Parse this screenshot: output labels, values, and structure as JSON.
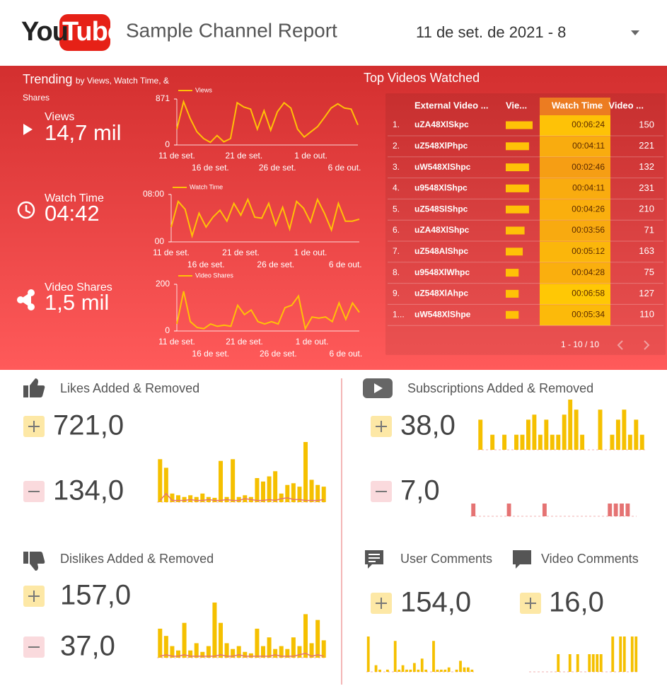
{
  "header": {
    "logo": [
      "You",
      "Tube"
    ],
    "title": "Sample Channel Report",
    "date_range": "11 de set. de 2021 - 8"
  },
  "trending": {
    "title": "Trending",
    "subtitle": "by Views, Watch Time, & Shares",
    "metrics": [
      {
        "label": "Views",
        "value": "14,7 mil"
      },
      {
        "label": "Watch Time",
        "value": "04:42"
      },
      {
        "label": "Video Shares",
        "value": "1,5 mil"
      }
    ]
  },
  "top_videos": {
    "title": "Top Videos Watched",
    "columns": [
      "External Video ...",
      "Vie...",
      "Watch Time",
      "Video ..."
    ],
    "rows": [
      [
        "1.",
        "uZA48XlSkpc",
        1500,
        "00:06:24",
        150
      ],
      [
        "2.",
        "uZ548XlPhpc",
        1300,
        "00:04:11",
        221
      ],
      [
        "3.",
        "uW548XlShpc",
        1300,
        "00:02:46",
        132
      ],
      [
        "4.",
        "u9548XlShpc",
        1300,
        "00:04:11",
        231
      ],
      [
        "5.",
        "uZ548SlShpc",
        1300,
        "00:04:26",
        210
      ],
      [
        "6.",
        "uZA48XlShpc",
        1050,
        "00:03:56",
        71
      ],
      [
        "7.",
        "uZ548AlShpc",
        950,
        "00:05:12",
        163
      ],
      [
        "8.",
        "u9548XlWhpc",
        720,
        "00:04:28",
        75
      ],
      [
        "9.",
        "uZ548XlAhpc",
        720,
        "00:06:58",
        127
      ],
      [
        "1...",
        "uW548XlShpe",
        720,
        "00:05:34",
        110
      ]
    ],
    "pagination": "1 - 10 / 10"
  },
  "chart_data": [
    {
      "type": "line",
      "categories": [
        "11 de set.",
        null,
        null,
        null,
        null,
        "16 de set.",
        null,
        null,
        null,
        null,
        "21 de set.",
        null,
        null,
        null,
        null,
        "26 de set.",
        null,
        null,
        null,
        null,
        "1 de out.",
        null,
        null,
        null,
        null,
        "6 de out.",
        null,
        null
      ],
      "series": [
        {
          "name": "Views",
          "color": "#ffc107",
          "values": [
            300,
            820,
            500,
            250,
            120,
            50,
            180,
            60,
            120,
            800,
            720,
            680,
            300,
            650,
            280,
            630,
            800,
            700,
            300,
            150,
            250,
            350,
            520,
            700,
            780,
            700,
            680,
            380
          ]
        }
      ],
      "ylim": [
        0,
        871
      ],
      "yticks": [
        0,
        871
      ]
    },
    {
      "type": "line",
      "categories": [
        "11 de set.",
        null,
        null,
        null,
        null,
        "16 de set.",
        null,
        null,
        null,
        null,
        "21 de set.",
        null,
        null,
        null,
        null,
        "26 de set.",
        null,
        null,
        null,
        null,
        "1 de out.",
        null,
        null,
        null,
        null,
        "6 de out.",
        null,
        null
      ],
      "series": [
        {
          "name": "Watch Time",
          "color": "#ffc107",
          "values": [
            150,
            410,
            330,
            60,
            290,
            150,
            250,
            320,
            210,
            390,
            270,
            430,
            250,
            240,
            390,
            170,
            350,
            130,
            410,
            340,
            200,
            430,
            290,
            120,
            390,
            210,
            210,
            230
          ]
        }
      ],
      "ylim": [
        0,
        480
      ],
      "yticks": [
        {
          "value": 0,
          "label": "00"
        },
        {
          "value": 480,
          "label": "08:00"
        }
      ]
    },
    {
      "type": "line",
      "categories": [
        "11 de set.",
        null,
        null,
        null,
        null,
        "16 de set.",
        null,
        null,
        null,
        null,
        "21 de set.",
        null,
        null,
        null,
        null,
        "26 de set.",
        null,
        null,
        null,
        null,
        "1 de out.",
        null,
        null,
        null,
        null,
        "6 de out.",
        null,
        null
      ],
      "series": [
        {
          "name": "Video Shares",
          "color": "#ffc107",
          "values": [
            30,
            170,
            40,
            15,
            10,
            30,
            20,
            25,
            20,
            110,
            70,
            90,
            40,
            30,
            40,
            30,
            100,
            110,
            150,
            10,
            60,
            55,
            60,
            40,
            120,
            50,
            120,
            80
          ]
        }
      ],
      "ylim": [
        0,
        200
      ],
      "yticks": [
        0,
        200
      ]
    },
    {
      "type": "combo",
      "title": "Likes Added & Removed",
      "totals": [
        "721,0",
        "134,0"
      ],
      "series": [
        {
          "kind": "bar",
          "color": "#f5c000",
          "values": [
            50,
            40,
            10,
            8,
            6,
            8,
            6,
            10,
            6,
            5,
            48,
            6,
            50,
            6,
            8,
            6,
            28,
            24,
            30,
            36,
            10,
            20,
            22,
            18,
            70,
            26,
            20,
            18
          ]
        },
        {
          "kind": "line",
          "color": "#e57373",
          "values": [
            2,
            10,
            2,
            2,
            2,
            3,
            2,
            2,
            3,
            2,
            2,
            3,
            2,
            2,
            4,
            3,
            2,
            2,
            3,
            2,
            4,
            5,
            3,
            3,
            2,
            2,
            2,
            3
          ]
        }
      ]
    },
    {
      "type": "combo",
      "title": "Dislikes Added & Removed",
      "totals": [
        "157,0",
        "37,0"
      ],
      "series": [
        {
          "kind": "bar",
          "color": "#f5c000",
          "values": [
            20,
            15,
            8,
            5,
            24,
            5,
            10,
            4,
            8,
            38,
            24,
            10,
            6,
            8,
            4,
            3,
            20,
            8,
            14,
            6,
            8,
            6,
            14,
            8,
            30,
            10,
            26,
            12
          ]
        },
        {
          "kind": "line",
          "color": "#e57373",
          "values": [
            1,
            2,
            1,
            1,
            2,
            1,
            1,
            1,
            1,
            1,
            2,
            1,
            1,
            2,
            1,
            1,
            1,
            1,
            1,
            2,
            1,
            1,
            1,
            2,
            3,
            1,
            2,
            1
          ]
        }
      ]
    },
    {
      "type": "bar",
      "title": "Subscriptions Added & Removed",
      "totals": [
        "38,0"
      ],
      "series": [
        {
          "kind": "bar",
          "color": "#f5c000",
          "values": [
            6,
            0,
            3,
            0,
            3,
            0,
            3,
            3,
            6,
            7,
            3,
            6,
            3,
            3,
            7,
            10,
            8,
            3,
            0,
            0,
            8,
            0,
            3,
            6,
            8,
            3,
            6,
            3
          ]
        }
      ]
    },
    {
      "type": "bar",
      "totals": [
        "7,0"
      ],
      "series": [
        {
          "kind": "bar",
          "color": "#e57373",
          "values": [
            1,
            0,
            0,
            0,
            0,
            0,
            1,
            0,
            0,
            0,
            0,
            0,
            1,
            0,
            0,
            0,
            0,
            0,
            0,
            0,
            0,
            0,
            0,
            1,
            1,
            1,
            1,
            0
          ]
        }
      ]
    },
    {
      "type": "bar",
      "title": "User Comments",
      "totals": [
        "154,0"
      ],
      "series": [
        {
          "kind": "bar",
          "color": "#f5c000",
          "values": [
            16,
            0,
            3,
            1,
            0,
            1,
            0,
            14,
            1,
            3,
            1,
            1,
            4,
            1,
            6,
            1,
            0,
            14,
            1,
            1,
            1,
            2,
            0,
            1,
            5,
            2,
            2,
            1
          ]
        }
      ]
    },
    {
      "type": "bar",
      "title": "Video Comments",
      "totals": [
        "16,0"
      ],
      "series": [
        {
          "kind": "bar",
          "color": "#f5c000",
          "values": [
            0,
            0,
            0,
            0,
            0,
            0,
            0,
            1,
            0,
            0,
            1,
            0,
            1,
            0,
            0,
            1,
            1,
            1,
            1,
            0,
            0,
            2,
            0,
            2,
            2,
            0,
            2,
            2
          ]
        }
      ]
    }
  ]
}
